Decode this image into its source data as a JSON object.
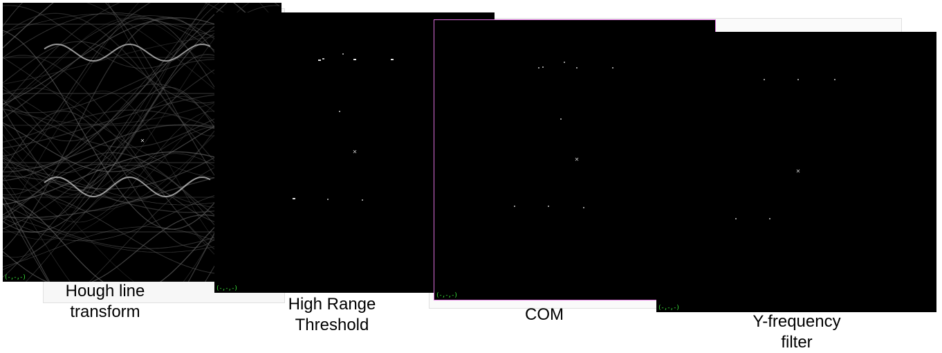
{
  "panels": [
    {
      "id": "hough",
      "status": "(-,-,-)",
      "caption": [
        "Hough line",
        "transform"
      ]
    },
    {
      "id": "threshold",
      "status": "(-,-,-)",
      "caption": [
        "High Range",
        "Threshold"
      ]
    },
    {
      "id": "com",
      "status": "(-,-,-)",
      "caption": [
        "COM"
      ]
    },
    {
      "id": "yfreq",
      "status": "(-,-,-)",
      "caption": [
        "Y-frequency",
        "filter"
      ]
    }
  ],
  "colors": {
    "viewer_bg": "#000000",
    "status_text": "#38e038",
    "selected_border": "#e070e0",
    "marker": "#cfcfcf"
  },
  "icons": {
    "center_marker": "cross-marker-icon"
  }
}
